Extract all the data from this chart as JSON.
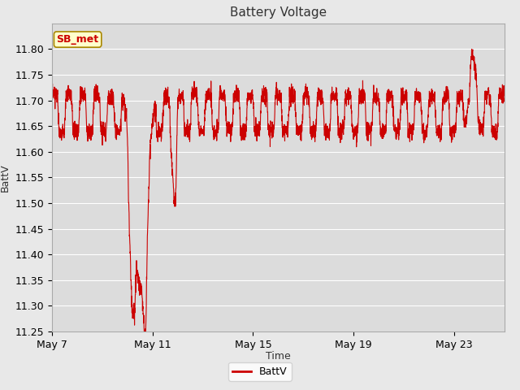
{
  "title": "Battery Voltage",
  "xlabel": "Time",
  "ylabel": "BattV",
  "legend_label": "BattV",
  "annotation_text": "SB_met",
  "ylim": [
    11.25,
    11.85
  ],
  "yticks": [
    11.25,
    11.3,
    11.35,
    11.4,
    11.45,
    11.5,
    11.55,
    11.6,
    11.65,
    11.7,
    11.75,
    11.8
  ],
  "xtick_labels": [
    "May 7",
    "May 11",
    "May 15",
    "May 19",
    "May 23"
  ],
  "xtick_positions": [
    0,
    4,
    8,
    12,
    16
  ],
  "xlim": [
    0,
    18
  ],
  "line_color": "#cc0000",
  "line_width": 0.8,
  "bg_color": "#e8e8e8",
  "plot_bg_color": "#dcdcdc",
  "grid_color": "#ffffff",
  "annotation_bg": "#ffffcc",
  "annotation_border": "#aa8800",
  "annotation_text_color": "#cc0000",
  "title_color": "#333333",
  "label_color": "#333333",
  "title_fontsize": 11,
  "label_fontsize": 9,
  "tick_fontsize": 9
}
